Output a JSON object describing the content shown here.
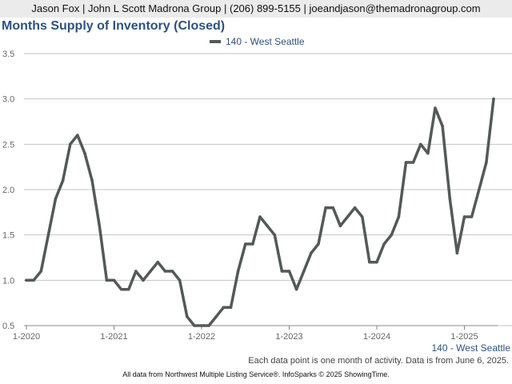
{
  "header": {
    "contact": "Jason Fox | John L Scott Madrona Group | (206) 899-5155 | joeandjason@themadronagroup.com"
  },
  "chart_data": {
    "type": "line",
    "title": "Months Supply of Inventory (Closed)",
    "ylim": [
      0.5,
      3.5
    ],
    "y_ticks": [
      "0.5",
      "1.0",
      "1.5",
      "2.0",
      "2.5",
      "3.0",
      "3.5"
    ],
    "x_ticks": [
      "1-2020",
      "1-2021",
      "1-2022",
      "1-2023",
      "1-2024",
      "1-2025"
    ],
    "grid": true,
    "legend": "top-center",
    "series": [
      {
        "name": "140 - West Seattle",
        "color": "#525a57",
        "x": [
          "1-2020",
          "2-2020",
          "3-2020",
          "4-2020",
          "5-2020",
          "6-2020",
          "7-2020",
          "8-2020",
          "9-2020",
          "10-2020",
          "11-2020",
          "12-2020",
          "1-2021",
          "2-2021",
          "3-2021",
          "4-2021",
          "5-2021",
          "6-2021",
          "7-2021",
          "8-2021",
          "9-2021",
          "10-2021",
          "11-2021",
          "12-2021",
          "1-2022",
          "2-2022",
          "3-2022",
          "4-2022",
          "5-2022",
          "6-2022",
          "7-2022",
          "8-2022",
          "9-2022",
          "10-2022",
          "11-2022",
          "12-2022",
          "1-2023",
          "2-2023",
          "3-2023",
          "4-2023",
          "5-2023",
          "6-2023",
          "7-2023",
          "8-2023",
          "9-2023",
          "10-2023",
          "11-2023",
          "12-2023",
          "1-2024",
          "2-2024",
          "3-2024",
          "4-2024",
          "5-2024",
          "6-2024",
          "7-2024",
          "8-2024",
          "9-2024",
          "10-2024",
          "11-2024",
          "12-2024",
          "1-2025",
          "2-2025",
          "3-2025",
          "4-2025",
          "5-2025"
        ],
        "values": [
          1.0,
          1.0,
          1.1,
          1.5,
          1.9,
          2.1,
          2.5,
          2.6,
          2.4,
          2.1,
          1.6,
          1.0,
          1.0,
          0.9,
          0.9,
          1.1,
          1.0,
          1.1,
          1.2,
          1.1,
          1.1,
          1.0,
          0.6,
          0.5,
          0.5,
          0.5,
          0.6,
          0.7,
          0.7,
          1.1,
          1.4,
          1.4,
          1.7,
          1.6,
          1.5,
          1.1,
          1.1,
          0.9,
          1.1,
          1.3,
          1.4,
          1.8,
          1.8,
          1.6,
          1.7,
          1.8,
          1.7,
          1.2,
          1.2,
          1.4,
          1.5,
          1.7,
          2.3,
          2.3,
          2.5,
          2.4,
          2.9,
          2.7,
          1.9,
          1.3,
          1.7,
          1.7,
          2.0,
          2.3,
          3.0
        ]
      }
    ]
  },
  "series_label": "140 - West Seattle",
  "footnote": "Each data point is one month of activity. Data is from June 6, 2025.",
  "credits": "All data from Northwest Multiple Listing Service®. InfoSparks © 2025 ShowingTime."
}
